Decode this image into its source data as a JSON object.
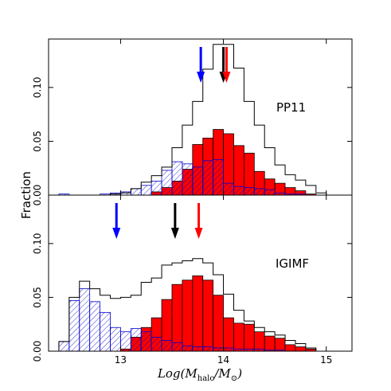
{
  "chart_data": {
    "type": "histogram",
    "ylabel": "Fraction",
    "xlabel_parts": {
      "main": "Log(M",
      "sub1": "halo",
      "mid": "/M",
      "sub2": "⊙",
      "end": ")"
    },
    "xlim": [
      12.3,
      15.25
    ],
    "xticks": [
      13,
      14,
      15
    ],
    "xtick_labels": [
      "13",
      "14",
      "15"
    ],
    "bin_edges": [
      12.4,
      12.5,
      12.6,
      12.7,
      12.8,
      12.9,
      13.0,
      13.1,
      13.2,
      13.3,
      13.4,
      13.5,
      13.6,
      13.7,
      13.8,
      13.9,
      14.0,
      14.1,
      14.2,
      14.3,
      14.4,
      14.5,
      14.6,
      14.7,
      14.8,
      14.9,
      15.0
    ],
    "colors": {
      "open_step": "#000000",
      "red_fill": "#ff0000",
      "blue_hatch": "#0000cc",
      "arrow_blue": "#0000ff",
      "arrow_black": "#000000",
      "arrow_red": "#ff0000"
    },
    "panels": [
      {
        "label": "PP11",
        "ylim": [
          0,
          0.145
        ],
        "yticks": [
          0.0,
          0.05,
          0.1
        ],
        "ytick_labels": [
          "0.00",
          "0.05",
          "0.10"
        ],
        "series": {
          "open_black": [
            0,
            0,
            0,
            0,
            0,
            0.001,
            0.002,
            0.006,
            0.012,
            0.018,
            0.026,
            0.044,
            0.065,
            0.087,
            0.117,
            0.14,
            0.14,
            0.118,
            0.087,
            0.065,
            0.044,
            0.028,
            0.019,
            0.014,
            0.009,
            0.002
          ],
          "red_filled": [
            0,
            0,
            0,
            0,
            0,
            0,
            0,
            0,
            0,
            0.003,
            0.007,
            0.013,
            0.024,
            0.047,
            0.053,
            0.061,
            0.057,
            0.046,
            0.039,
            0.022,
            0.015,
            0.011,
            0.007,
            0.004,
            0.001,
            0
          ],
          "blue_hatched": [
            0.001,
            0,
            0,
            0,
            0.001,
            0.002,
            0.003,
            0.006,
            0.009,
            0.013,
            0.023,
            0.031,
            0.029,
            0.026,
            0.032,
            0.033,
            0.011,
            0.008,
            0.007,
            0.006,
            0.005,
            0.002,
            0.001,
            0.001,
            0,
            0
          ]
        },
        "arrows": {
          "blue": 13.78,
          "black": 14.0,
          "red": 14.03
        }
      },
      {
        "label": "IGIMF",
        "ylim": [
          0,
          0.145
        ],
        "yticks": [
          0.0,
          0.05,
          0.1
        ],
        "ytick_labels": [
          "0.00",
          "0.05",
          "0.10"
        ],
        "series": {
          "open_black": [
            0.009,
            0.05,
            0.065,
            0.058,
            0.052,
            0.049,
            0.05,
            0.052,
            0.064,
            0.068,
            0.08,
            0.082,
            0.084,
            0.086,
            0.082,
            0.071,
            0.053,
            0.038,
            0.028,
            0.022,
            0.018,
            0.015,
            0.01,
            0.007,
            0.003,
            0
          ],
          "red_filled": [
            0,
            0,
            0,
            0,
            0,
            0,
            0.002,
            0.013,
            0.022,
            0.031,
            0.048,
            0.062,
            0.066,
            0.07,
            0.066,
            0.052,
            0.031,
            0.026,
            0.025,
            0.018,
            0.014,
            0.012,
            0.006,
            0.004,
            0.002,
            0
          ],
          "blue_hatched": [
            0.009,
            0.047,
            0.058,
            0.046,
            0.036,
            0.022,
            0.018,
            0.021,
            0.018,
            0.013,
            0.01,
            0.008,
            0.005,
            0.004,
            0.004,
            0.003,
            0.003,
            0.002,
            0.002,
            0.002,
            0.001,
            0.001,
            0,
            0,
            0,
            0
          ]
        },
        "arrows": {
          "blue": 12.96,
          "black": 13.53,
          "red": 13.76
        }
      }
    ]
  }
}
